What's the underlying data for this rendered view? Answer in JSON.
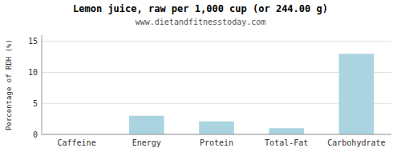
{
  "chart_data": {
    "type": "bar",
    "title": "Lemon juice, raw per 1,000 cup (or 244.00 g)",
    "subtitle": "www.dietandfitnesstoday.com",
    "ylabel": "Percentage of RDH (%)",
    "categories": [
      "Caffeine",
      "Energy",
      "Protein",
      "Total-Fat",
      "Carbohydrate"
    ],
    "values": [
      0,
      3.0,
      2.1,
      1.0,
      13.0
    ],
    "color": "#aad4df",
    "ylim": [
      0,
      16
    ],
    "yticks": [
      0,
      5,
      10,
      15
    ],
    "grid": true
  }
}
